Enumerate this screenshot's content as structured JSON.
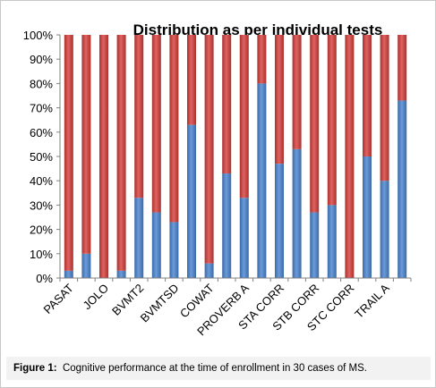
{
  "chart_data": {
    "type": "bar",
    "stacked": true,
    "title": "Distribution as per individual tests",
    "categories": [
      "PASAT",
      "",
      "JOLO",
      "",
      "BVMT2",
      "",
      "BVMTSD",
      "",
      "COWAT",
      "",
      "PROVERB A",
      "",
      "STA CORR",
      "",
      "STB CORR",
      "",
      "STC CORR",
      "",
      "TRAIL A",
      ""
    ],
    "series": [
      {
        "values": [
          3,
          10,
          0,
          3,
          33,
          27,
          23,
          63,
          6,
          43,
          33,
          80,
          47,
          53,
          27,
          30,
          0,
          50,
          40,
          73
        ]
      },
      {
        "values": [
          97,
          90,
          100,
          97,
          67,
          73,
          77,
          37,
          94,
          57,
          67,
          20,
          53,
          47,
          73,
          70,
          100,
          50,
          60,
          27
        ]
      }
    ],
    "y_ticks": [
      "0%",
      "10%",
      "20%",
      "30%",
      "40%",
      "50%",
      "60%",
      "70%",
      "80%",
      "90%",
      "100%"
    ],
    "ylim": [
      0,
      100
    ],
    "grid": false,
    "legend": "none",
    "colors": {
      "series1": "#4a7ebb",
      "series2": "#c0504d"
    }
  },
  "caption": {
    "label": "Figure 1:",
    "text": "Cognitive performance at the time of enrollment in 30 cases of MS."
  }
}
